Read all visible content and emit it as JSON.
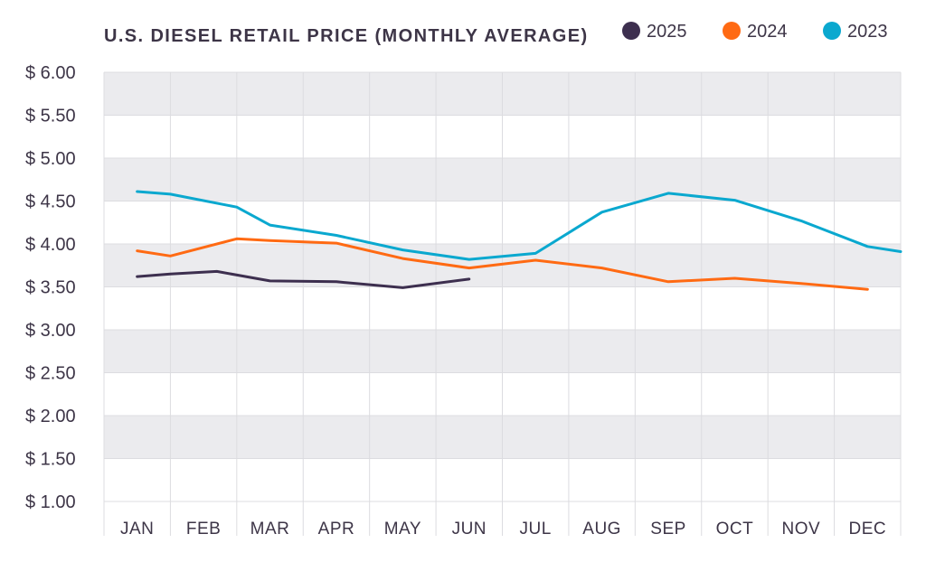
{
  "chart_data": {
    "type": "line",
    "title": "U.S. DIESEL RETAIL PRICE (MONTHLY AVERAGE)",
    "xlabel": "",
    "ylabel": "",
    "categories": [
      "JAN",
      "FEB",
      "MAR",
      "APR",
      "MAY",
      "JUN",
      "JUL",
      "AUG",
      "SEP",
      "OCT",
      "NOV",
      "DEC"
    ],
    "ylim": [
      1.0,
      6.0
    ],
    "yticks": [
      1.0,
      1.5,
      2.0,
      2.5,
      3.0,
      3.5,
      4.0,
      4.5,
      5.0,
      5.5,
      6.0
    ],
    "ytick_labels": [
      "$ 1.00",
      "$ 1.50",
      "$ 2.00",
      "$ 2.50",
      "$ 3.00",
      "$ 3.50",
      "$ 4.00",
      "$ 4.50",
      "$ 5.00",
      "$ 5.50",
      "$ 6.00"
    ],
    "legend_position": "top-right",
    "series": [
      {
        "name": "2025",
        "color": "#3d2f4f",
        "x": [
          0,
          0.5,
          1.2,
          2,
          3,
          4,
          5
        ],
        "values": [
          3.62,
          3.65,
          3.68,
          3.57,
          3.56,
          3.49,
          3.59
        ]
      },
      {
        "name": "2024",
        "color": "#ff6a13",
        "x": [
          0,
          0.5,
          1.5,
          2,
          3,
          4,
          5,
          6,
          7,
          8,
          9,
          10,
          11
        ],
        "values": [
          3.92,
          3.86,
          4.06,
          4.04,
          4.01,
          3.83,
          3.72,
          3.81,
          3.72,
          3.56,
          3.6,
          3.54,
          3.47
        ]
      },
      {
        "name": "2023",
        "color": "#0aa8cf",
        "x": [
          0,
          0.5,
          1.5,
          2,
          3,
          4,
          5,
          6,
          7,
          8,
          9,
          10,
          11,
          11.5
        ],
        "values": [
          4.61,
          4.58,
          4.43,
          4.22,
          4.1,
          3.93,
          3.82,
          3.89,
          4.37,
          4.59,
          4.51,
          4.27,
          3.97,
          3.91
        ]
      }
    ]
  }
}
